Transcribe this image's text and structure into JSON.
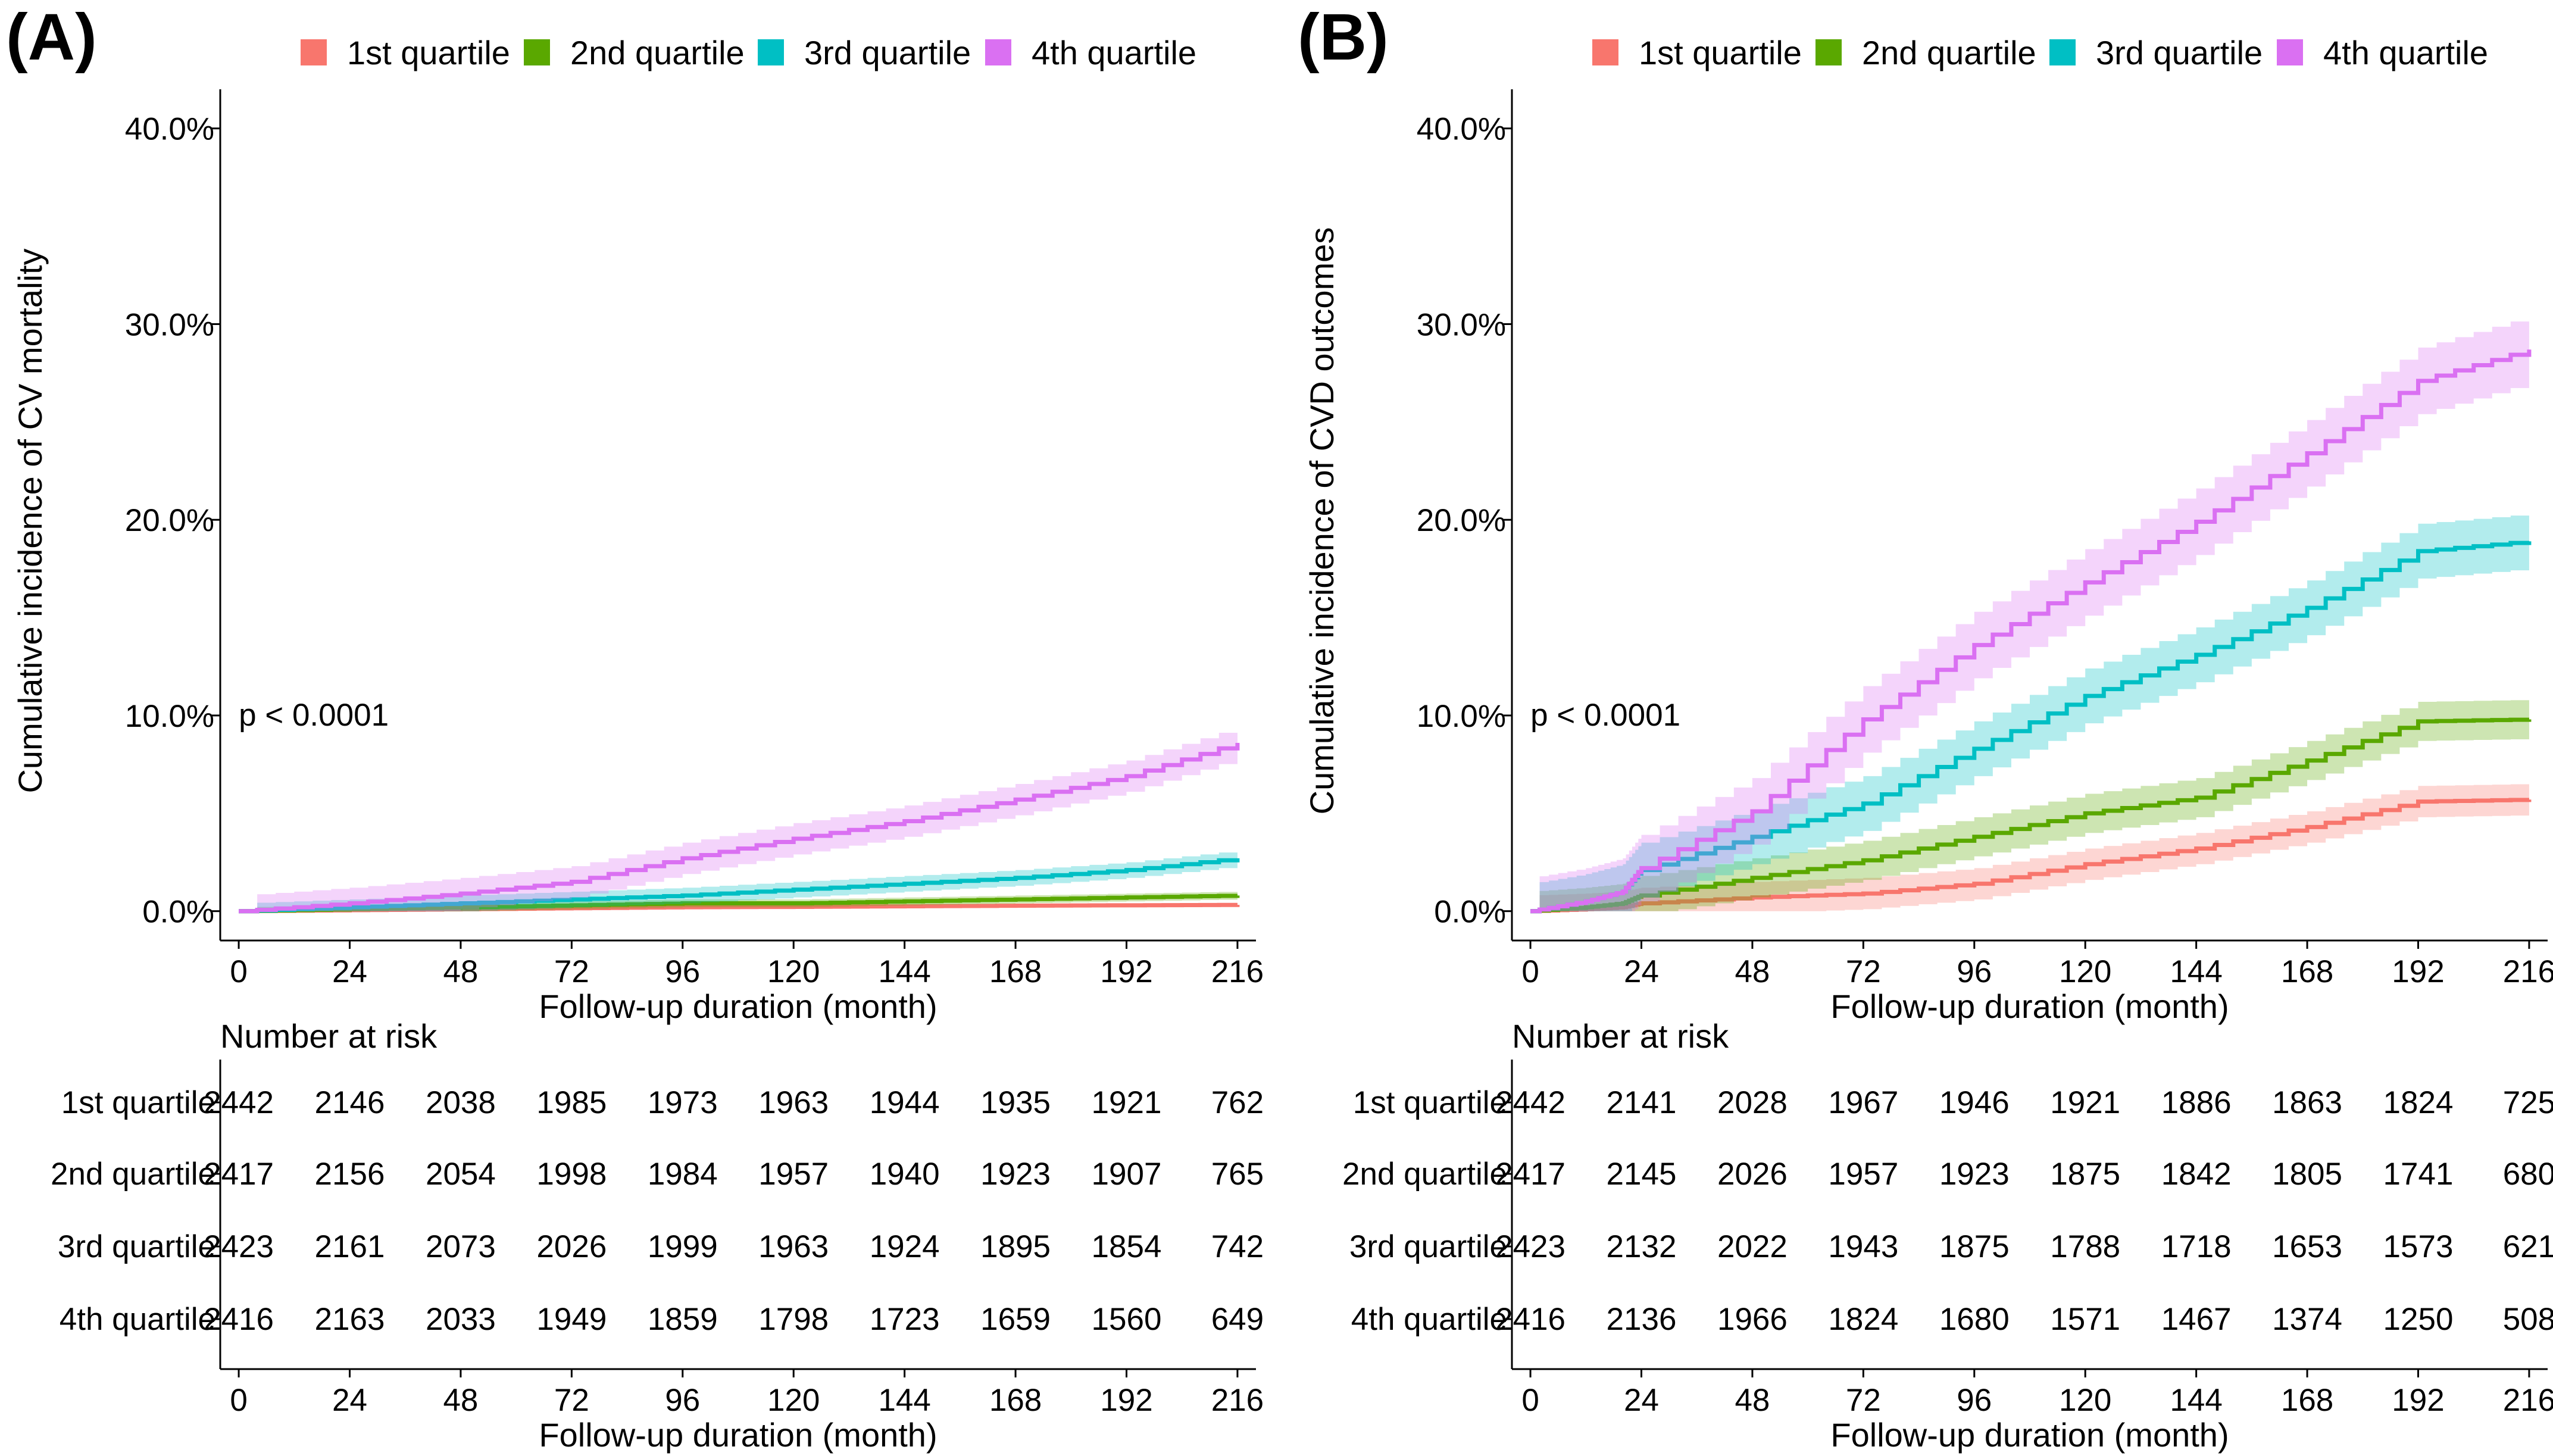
{
  "legend": {
    "entries": [
      {
        "label": "1st quartile",
        "color": "#f8766d"
      },
      {
        "label": "2nd quartile",
        "color": "#5aa800"
      },
      {
        "label": "3rd quartile",
        "color": "#00bfc4"
      },
      {
        "label": "4th quartile",
        "color": "#da70f2"
      }
    ]
  },
  "chart_data": [
    {
      "type": "line",
      "panel_label": "(A)",
      "title": "",
      "xlabel": "Follow-up duration (month)",
      "ylabel": "Cumulative incidence of CV mortality",
      "xlim": [
        -4,
        220
      ],
      "ylim": [
        -0.015,
        0.42
      ],
      "x_ticks": [
        0,
        24,
        48,
        72,
        96,
        120,
        144,
        168,
        192,
        216
      ],
      "x_tick_labels": [
        "0",
        "24",
        "48",
        "72",
        "96",
        "120",
        "144",
        "168",
        "192",
        "216"
      ],
      "y_ticks": [
        0,
        0.1,
        0.2,
        0.3,
        0.4
      ],
      "y_tick_labels": [
        "0.0%",
        "10.0%",
        "20.0%",
        "30.0%",
        "40.0%"
      ],
      "annotation": "p < 0.0001",
      "series": [
        {
          "name": "1st quartile",
          "x": [
            0,
            24,
            48,
            72,
            96,
            120,
            144,
            168,
            192,
            216
          ],
          "y": [
            0,
            0.0005,
            0.001,
            0.0015,
            0.002,
            0.0022,
            0.0025,
            0.0028,
            0.003,
            0.0032
          ],
          "band": 0.001
        },
        {
          "name": "2nd quartile",
          "x": [
            0,
            24,
            48,
            72,
            96,
            120,
            144,
            168,
            192,
            216
          ],
          "y": [
            0,
            0.001,
            0.002,
            0.003,
            0.004,
            0.004,
            0.005,
            0.006,
            0.007,
            0.008
          ],
          "band": 0.002
        },
        {
          "name": "3rd quartile",
          "x": [
            0,
            24,
            48,
            72,
            96,
            120,
            144,
            168,
            192,
            216
          ],
          "y": [
            0,
            0.002,
            0.004,
            0.006,
            0.008,
            0.011,
            0.014,
            0.017,
            0.021,
            0.027
          ],
          "band": 0.004
        },
        {
          "name": "4th quartile",
          "x": [
            0,
            24,
            48,
            72,
            96,
            120,
            144,
            168,
            192,
            216
          ],
          "y": [
            0,
            0.004,
            0.009,
            0.015,
            0.027,
            0.037,
            0.046,
            0.057,
            0.069,
            0.086
          ],
          "band": 0.008
        }
      ],
      "risk_table": {
        "title": "Number at risk",
        "xlabel": "Follow-up duration (month)",
        "rows": [
          {
            "label": "1st quartile",
            "values": [
              "2442",
              "2146",
              "2038",
              "1985",
              "1973",
              "1963",
              "1944",
              "1935",
              "1921",
              "762"
            ]
          },
          {
            "label": "2nd quartile",
            "values": [
              "2417",
              "2156",
              "2054",
              "1998",
              "1984",
              "1957",
              "1940",
              "1923",
              "1907",
              "765"
            ]
          },
          {
            "label": "3rd quartile",
            "values": [
              "2423",
              "2161",
              "2073",
              "2026",
              "1999",
              "1963",
              "1924",
              "1895",
              "1854",
              "742"
            ]
          },
          {
            "label": "4th quartile",
            "values": [
              "2416",
              "2163",
              "2033",
              "1949",
              "1859",
              "1798",
              "1723",
              "1659",
              "1560",
              "649"
            ]
          }
        ]
      }
    },
    {
      "type": "line",
      "panel_label": "(B)",
      "title": "",
      "xlabel": "Follow-up duration (month)",
      "ylabel": "Cumulative incidence of CVD outcomes",
      "xlim": [
        -4,
        220
      ],
      "ylim": [
        -0.015,
        0.42
      ],
      "x_ticks": [
        0,
        24,
        48,
        72,
        96,
        120,
        144,
        168,
        192,
        216
      ],
      "x_tick_labels": [
        "0",
        "24",
        "48",
        "72",
        "96",
        "120",
        "144",
        "168",
        "192",
        "216"
      ],
      "y_ticks": [
        0,
        0.1,
        0.2,
        0.3,
        0.4
      ],
      "y_tick_labels": [
        "0.0%",
        "10.0%",
        "20.0%",
        "30.0%",
        "40.0%"
      ],
      "annotation": "p < 0.0001",
      "series": [
        {
          "name": "1st quartile",
          "x": [
            0,
            12,
            20,
            24,
            48,
            72,
            96,
            120,
            144,
            168,
            192,
            216
          ],
          "y": [
            0,
            0.001,
            0.002,
            0.004,
            0.007,
            0.009,
            0.014,
            0.024,
            0.032,
            0.043,
            0.056,
            0.057
          ],
          "band": 0.008
        },
        {
          "name": "2nd quartile",
          "x": [
            0,
            12,
            20,
            24,
            48,
            72,
            96,
            120,
            144,
            168,
            192,
            216
          ],
          "y": [
            0,
            0.002,
            0.004,
            0.008,
            0.017,
            0.026,
            0.038,
            0.05,
            0.058,
            0.077,
            0.097,
            0.098
          ],
          "band": 0.01
        },
        {
          "name": "3rd quartile",
          "x": [
            0,
            12,
            20,
            24,
            48,
            72,
            96,
            120,
            144,
            168,
            192,
            216
          ],
          "y": [
            0,
            0.005,
            0.01,
            0.021,
            0.038,
            0.055,
            0.083,
            0.11,
            0.131,
            0.155,
            0.184,
            0.189
          ],
          "band": 0.014
        },
        {
          "name": "4th quartile",
          "x": [
            0,
            12,
            20,
            24,
            48,
            72,
            96,
            120,
            144,
            168,
            192,
            216
          ],
          "y": [
            0,
            0.005,
            0.01,
            0.022,
            0.051,
            0.098,
            0.136,
            0.168,
            0.199,
            0.234,
            0.271,
            0.287
          ],
          "band": 0.017
        }
      ],
      "risk_table": {
        "title": "Number at risk",
        "xlabel": "Follow-up duration (month)",
        "rows": [
          {
            "label": "1st quartile",
            "values": [
              "2442",
              "2141",
              "2028",
              "1967",
              "1946",
              "1921",
              "1886",
              "1863",
              "1824",
              "725"
            ]
          },
          {
            "label": "2nd quartile",
            "values": [
              "2417",
              "2145",
              "2026",
              "1957",
              "1923",
              "1875",
              "1842",
              "1805",
              "1741",
              "680"
            ]
          },
          {
            "label": "3rd quartile",
            "values": [
              "2423",
              "2132",
              "2022",
              "1943",
              "1875",
              "1788",
              "1718",
              "1653",
              "1573",
              "621"
            ]
          },
          {
            "label": "4th quartile",
            "values": [
              "2416",
              "2136",
              "1966",
              "1824",
              "1680",
              "1571",
              "1467",
              "1374",
              "1250",
              "508"
            ]
          }
        ]
      }
    }
  ]
}
